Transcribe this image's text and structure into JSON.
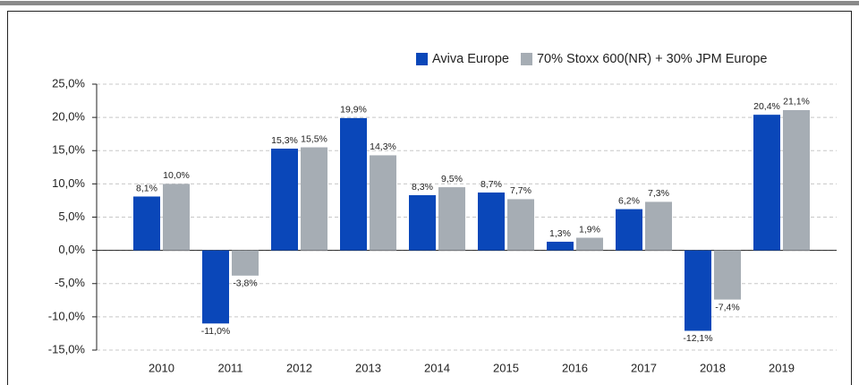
{
  "chart_data": {
    "type": "bar",
    "categories": [
      "2010",
      "2011",
      "2012",
      "2013",
      "2014",
      "2015",
      "2016",
      "2017",
      "2018",
      "2019"
    ],
    "series": [
      {
        "name": "Aviva Europe",
        "color": "#0a47b9",
        "values": [
          8.1,
          -11.0,
          15.3,
          19.9,
          8.3,
          8.7,
          1.3,
          6.2,
          -12.1,
          20.4
        ],
        "value_labels": [
          "8,1%",
          "-11,0%",
          "15,3%",
          "19,9%",
          "8,3%",
          "8,7%",
          "1,3%",
          "6,2%",
          "-12,1%",
          "20,4%"
        ]
      },
      {
        "name": "70% Stoxx 600(NR) + 30% JPM Europe",
        "color": "#a6adb4",
        "values": [
          10.0,
          -3.8,
          15.5,
          14.3,
          9.5,
          7.7,
          1.9,
          7.3,
          -7.4,
          21.1
        ],
        "value_labels": [
          "10,0%",
          "-3,8%",
          "15,5%",
          "14,3%",
          "9,5%",
          "7,7%",
          "1,9%",
          "7,3%",
          "-7,4%",
          "21,1%"
        ]
      }
    ],
    "ylim": [
      -15,
      25
    ],
    "yticks": [
      {
        "value": -15,
        "label": "-15,0%"
      },
      {
        "value": -10,
        "label": "-10,0%"
      },
      {
        "value": -5,
        "label": "-5,0%"
      },
      {
        "value": 0,
        "label": "0,0%"
      },
      {
        "value": 5,
        "label": "5,0%"
      },
      {
        "value": 10,
        "label": "10,0%"
      },
      {
        "value": 15,
        "label": "15,0%"
      },
      {
        "value": 20,
        "label": "20,0%"
      },
      {
        "value": 25,
        "label": "25,0%"
      }
    ],
    "grid": true,
    "legend": "top-right"
  }
}
